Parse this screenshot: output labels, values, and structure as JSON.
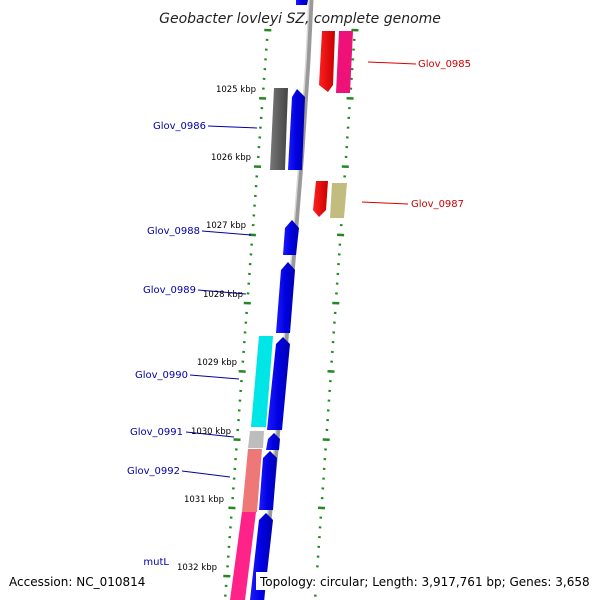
{
  "title": "Geobacter lovleyi SZ, complete genome",
  "footer": {
    "accession": "Accession: NC_010814",
    "topology": "Topology: circular; Length: 3,917,761 bp; Genes: 3,658"
  },
  "kbp_labels": [
    "1025 kbp",
    "1026 kbp",
    "1027 kbp",
    "1028 kbp",
    "1029 kbp",
    "1030 kbp",
    "1031 kbp",
    "1032 kbp"
  ],
  "genes": [
    {
      "id": "Glov_0985",
      "label": "Glov_0985",
      "color": "#cc0000"
    },
    {
      "id": "Glov_0986",
      "label": "Glov_0986",
      "color": "#0000aa"
    },
    {
      "id": "Glov_0987",
      "label": "Glov_0987",
      "color": "#cc0000"
    },
    {
      "id": "Glov_0988",
      "label": "Glov_0988",
      "color": "#0000aa"
    },
    {
      "id": "Glov_0989",
      "label": "Glov_0989",
      "color": "#0000aa"
    },
    {
      "id": "Glov_0990",
      "label": "Glov_0990",
      "color": "#0000aa"
    },
    {
      "id": "Glov_0991",
      "label": "Glov_0991",
      "color": "#0000aa"
    },
    {
      "id": "Glov_0992",
      "label": "Glov_0992",
      "color": "#0000aa"
    },
    {
      "id": "mutL",
      "label": "mutL",
      "color": "#0000aa"
    }
  ],
  "colors": {
    "forward_blue": "#0000ee",
    "reverse_red": "#ee0000",
    "magenta": "#ee1177",
    "dark_gray": "#555555",
    "olive": "#bbbb77",
    "cyan": "#00e5e5",
    "light_gray": "#bbbbbb",
    "salmon": "#ee7777",
    "pink": "#ff2288",
    "backbone": "#888888",
    "tick_green": "#228822"
  }
}
